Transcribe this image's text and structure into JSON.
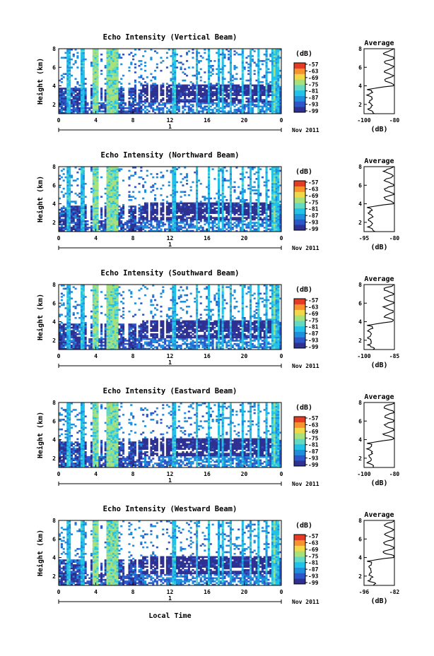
{
  "chart_data": [
    {
      "type": "heatmap",
      "title": "Echo Intensity (Vertical Beam)",
      "ylabel": "Height (km)",
      "x_ticks": [
        "0",
        "4",
        "8",
        "12",
        "16",
        "20",
        "0"
      ],
      "y_ticks": [
        "2",
        "4",
        "6",
        "8"
      ],
      "xlim": [
        0,
        24
      ],
      "ylim": [
        1,
        8
      ],
      "date_label": "1",
      "month_label": "Nov 2011",
      "colorbar": {
        "unit": "(dB)",
        "ticks": [
          "-57",
          "-63",
          "-69",
          "-75",
          "-81",
          "-87",
          "-93",
          "-99"
        ]
      },
      "average": {
        "title": "Average",
        "xlabel": "(dB)",
        "x_ticks": [
          "-100",
          "-80"
        ],
        "xlim": [
          -100,
          -80
        ],
        "y_ticks": [
          "2",
          "4",
          "6",
          "8"
        ],
        "ylim": [
          1,
          8
        ]
      }
    },
    {
      "type": "heatmap",
      "title": "Echo Intensity (Northward Beam)",
      "ylabel": "Height (km)",
      "x_ticks": [
        "0",
        "4",
        "8",
        "12",
        "16",
        "20",
        "0"
      ],
      "y_ticks": [
        "2",
        "4",
        "6",
        "8"
      ],
      "xlim": [
        0,
        24
      ],
      "ylim": [
        1,
        8
      ],
      "date_label": "1",
      "month_label": "Nov 2011",
      "colorbar": {
        "unit": "(dB)",
        "ticks": [
          "-57",
          "-63",
          "-69",
          "-75",
          "-81",
          "-87",
          "-93",
          "-99"
        ]
      },
      "average": {
        "title": "Average",
        "xlabel": "(dB)",
        "x_ticks": [
          "-95",
          "-80"
        ],
        "xlim": [
          -95,
          -80
        ],
        "y_ticks": [
          "2",
          "4",
          "6",
          "8"
        ],
        "ylim": [
          1,
          8
        ]
      }
    },
    {
      "type": "heatmap",
      "title": "Echo Intensity (Southward Beam)",
      "ylabel": "Height (km)",
      "x_ticks": [
        "0",
        "4",
        "8",
        "12",
        "16",
        "20",
        "0"
      ],
      "y_ticks": [
        "2",
        "4",
        "6",
        "8"
      ],
      "xlim": [
        0,
        24
      ],
      "ylim": [
        1,
        8
      ],
      "date_label": "1",
      "month_label": "Nov 2011",
      "colorbar": {
        "unit": "(dB)",
        "ticks": [
          "-57",
          "-63",
          "-69",
          "-75",
          "-81",
          "-87",
          "-93",
          "-99"
        ]
      },
      "average": {
        "title": "Average",
        "xlabel": "(dB)",
        "x_ticks": [
          "-100",
          "-85"
        ],
        "xlim": [
          -100,
          -85
        ],
        "y_ticks": [
          "2",
          "4",
          "6",
          "8"
        ],
        "ylim": [
          1,
          8
        ]
      }
    },
    {
      "type": "heatmap",
      "title": "Echo Intensity (Eastward Beam)",
      "ylabel": "Height (km)",
      "x_ticks": [
        "0",
        "4",
        "8",
        "12",
        "16",
        "20",
        "0"
      ],
      "y_ticks": [
        "2",
        "4",
        "6",
        "8"
      ],
      "xlim": [
        0,
        24
      ],
      "ylim": [
        1,
        8
      ],
      "date_label": "1",
      "month_label": "Nov 2011",
      "colorbar": {
        "unit": "(dB)",
        "ticks": [
          "-57",
          "-63",
          "-69",
          "-75",
          "-81",
          "-87",
          "-93",
          "-99"
        ]
      },
      "average": {
        "title": "Average",
        "xlabel": "(dB)",
        "x_ticks": [
          "-100",
          "-80"
        ],
        "xlim": [
          -100,
          -80
        ],
        "y_ticks": [
          "2",
          "4",
          "6",
          "8"
        ],
        "ylim": [
          1,
          8
        ]
      }
    },
    {
      "type": "heatmap",
      "title": "Echo Intensity (Westward Beam)",
      "ylabel": "Height (km)",
      "x_ticks": [
        "0",
        "4",
        "8",
        "12",
        "16",
        "20",
        "0"
      ],
      "y_ticks": [
        "2",
        "4",
        "6",
        "8"
      ],
      "xlim": [
        0,
        24
      ],
      "ylim": [
        1,
        8
      ],
      "date_label": "1",
      "month_label": "Nov 2011",
      "colorbar": {
        "unit": "(dB)",
        "ticks": [
          "-57",
          "-63",
          "-69",
          "-75",
          "-81",
          "-87",
          "-93",
          "-99"
        ]
      },
      "average": {
        "title": "Average",
        "xlabel": "(dB)",
        "x_ticks": [
          "-96",
          "-82"
        ],
        "xlim": [
          -96,
          -82
        ],
        "y_ticks": [
          "2",
          "4",
          "6",
          "8"
        ],
        "ylim": [
          1,
          8
        ]
      }
    }
  ],
  "shared_xlabel": "Local Time",
  "colors": {
    "colormap": [
      "#2e3191",
      "#2d56c8",
      "#1f8fdc",
      "#22c1e8",
      "#63d9c4",
      "#a8e07a",
      "#f0d848",
      "#f6932e",
      "#e33b24"
    ]
  }
}
